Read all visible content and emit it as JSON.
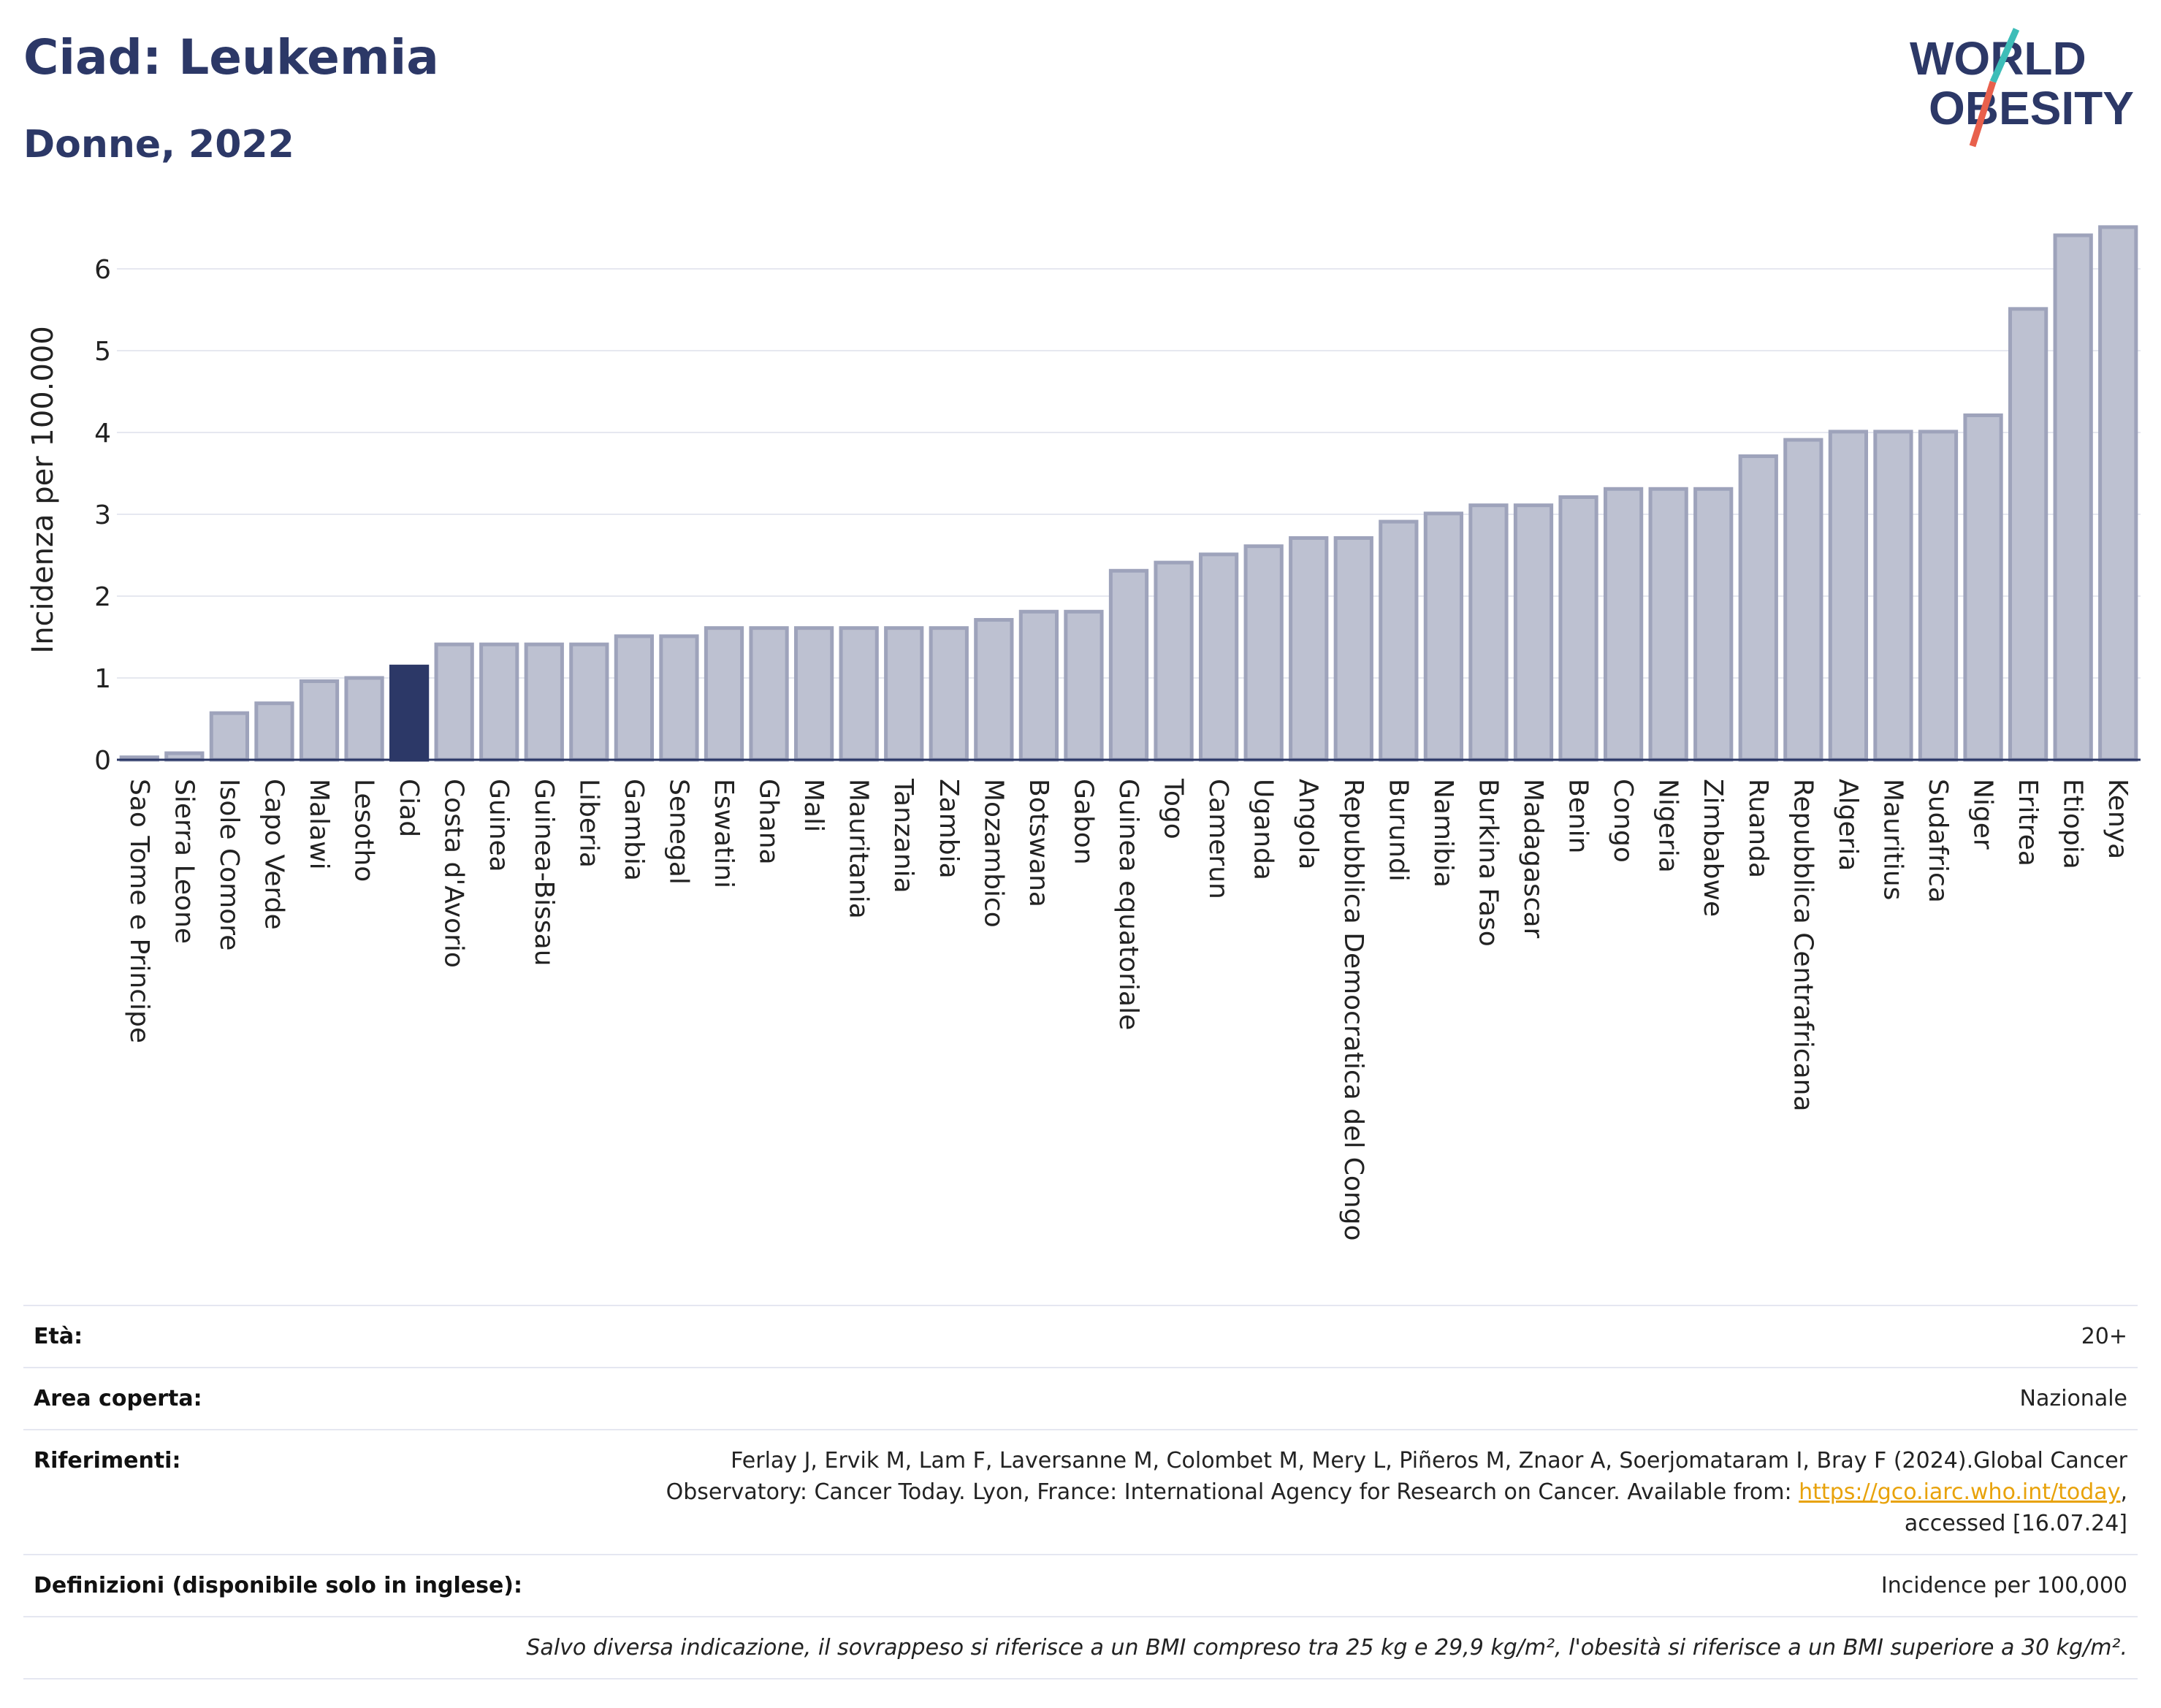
{
  "header": {
    "title": "Ciad: Leukemia",
    "subtitle": "Donne, 2022"
  },
  "logo": {
    "line1": "WORLD",
    "line2": "OBESITY",
    "colors": {
      "text": "#2c3867",
      "slash_top": "#3dbdb8",
      "slash_bottom": "#e8604c"
    }
  },
  "chart_data": {
    "type": "bar",
    "title": "Ciad: Leukemia",
    "subtitle": "Donne, 2022",
    "ylabel": "Incidenza per 100.000",
    "xlabel": "",
    "ylim": [
      0,
      6.6
    ],
    "yticks": [
      0,
      1,
      2,
      3,
      4,
      5,
      6
    ],
    "grid": true,
    "highlight": "Ciad",
    "colors": {
      "default": "#bdc1d1",
      "default_border": "#9ea3bb",
      "highlight": "#2c3867"
    },
    "categories": [
      "Sao Tome e Principe",
      "Sierra Leone",
      "Isole Comore",
      "Capo Verde",
      "Malawi",
      "Lesotho",
      "Ciad",
      "Costa d'Avorio",
      "Guinea",
      "Guinea-Bissau",
      "Liberia",
      "Gambia",
      "Senegal",
      "Eswatini",
      "Ghana",
      "Mali",
      "Mauritania",
      "Tanzania",
      "Zambia",
      "Mozambico",
      "Botswana",
      "Gabon",
      "Guinea equatoriale",
      "Togo",
      "Camerun",
      "Uganda",
      "Angola",
      "Repubblica Democratica del Congo",
      "Burundi",
      "Namibia",
      "Burkina Faso",
      "Madagascar",
      "Benin",
      "Congo",
      "Nigeria",
      "Zimbabwe",
      "Ruanda",
      "Repubblica Centrafricana",
      "Algeria",
      "Mauritius",
      "Sudafrica",
      "Niger",
      "Eritrea",
      "Etiopia",
      "Kenya"
    ],
    "values": [
      0.03,
      0.08,
      0.57,
      0.69,
      0.96,
      1.0,
      1.14,
      1.41,
      1.41,
      1.41,
      1.41,
      1.51,
      1.51,
      1.61,
      1.61,
      1.61,
      1.61,
      1.61,
      1.61,
      1.71,
      1.81,
      1.81,
      2.31,
      2.41,
      2.51,
      2.61,
      2.71,
      2.71,
      2.91,
      3.01,
      3.11,
      3.11,
      3.21,
      3.31,
      3.31,
      3.31,
      3.71,
      3.91,
      4.01,
      4.01,
      4.01,
      4.21,
      5.51,
      6.41,
      6.51
    ]
  },
  "info": {
    "age_label": "Età:",
    "age_value": "20+",
    "area_label": "Area coperta:",
    "area_value": "Nazionale",
    "refs_label": "Riferimenti:",
    "refs_line1": "Ferlay J, Ervik M, Lam F, Laversanne M, Colombet M, Mery L, Piñeros M, Znaor A, Soerjomataram I, Bray F (2024).Global Cancer",
    "refs_line2_pre": "Observatory: Cancer Today. Lyon, France: International Agency for Research on Cancer. Available from: ",
    "refs_link": "https://gco.iarc.who.int/today",
    "refs_line2_post": ",",
    "refs_line3": "accessed [16.07.24]",
    "defs_label": "Definizioni (disponibile solo in inglese):",
    "defs_value": "Incidence per 100,000",
    "note": "Salvo diversa indicazione, il sovrappeso si riferisce a un BMI compreso tra 25 kg e 29,9 kg/m², l'obesità si riferisce a un BMI superiore a 30 kg/m²."
  }
}
